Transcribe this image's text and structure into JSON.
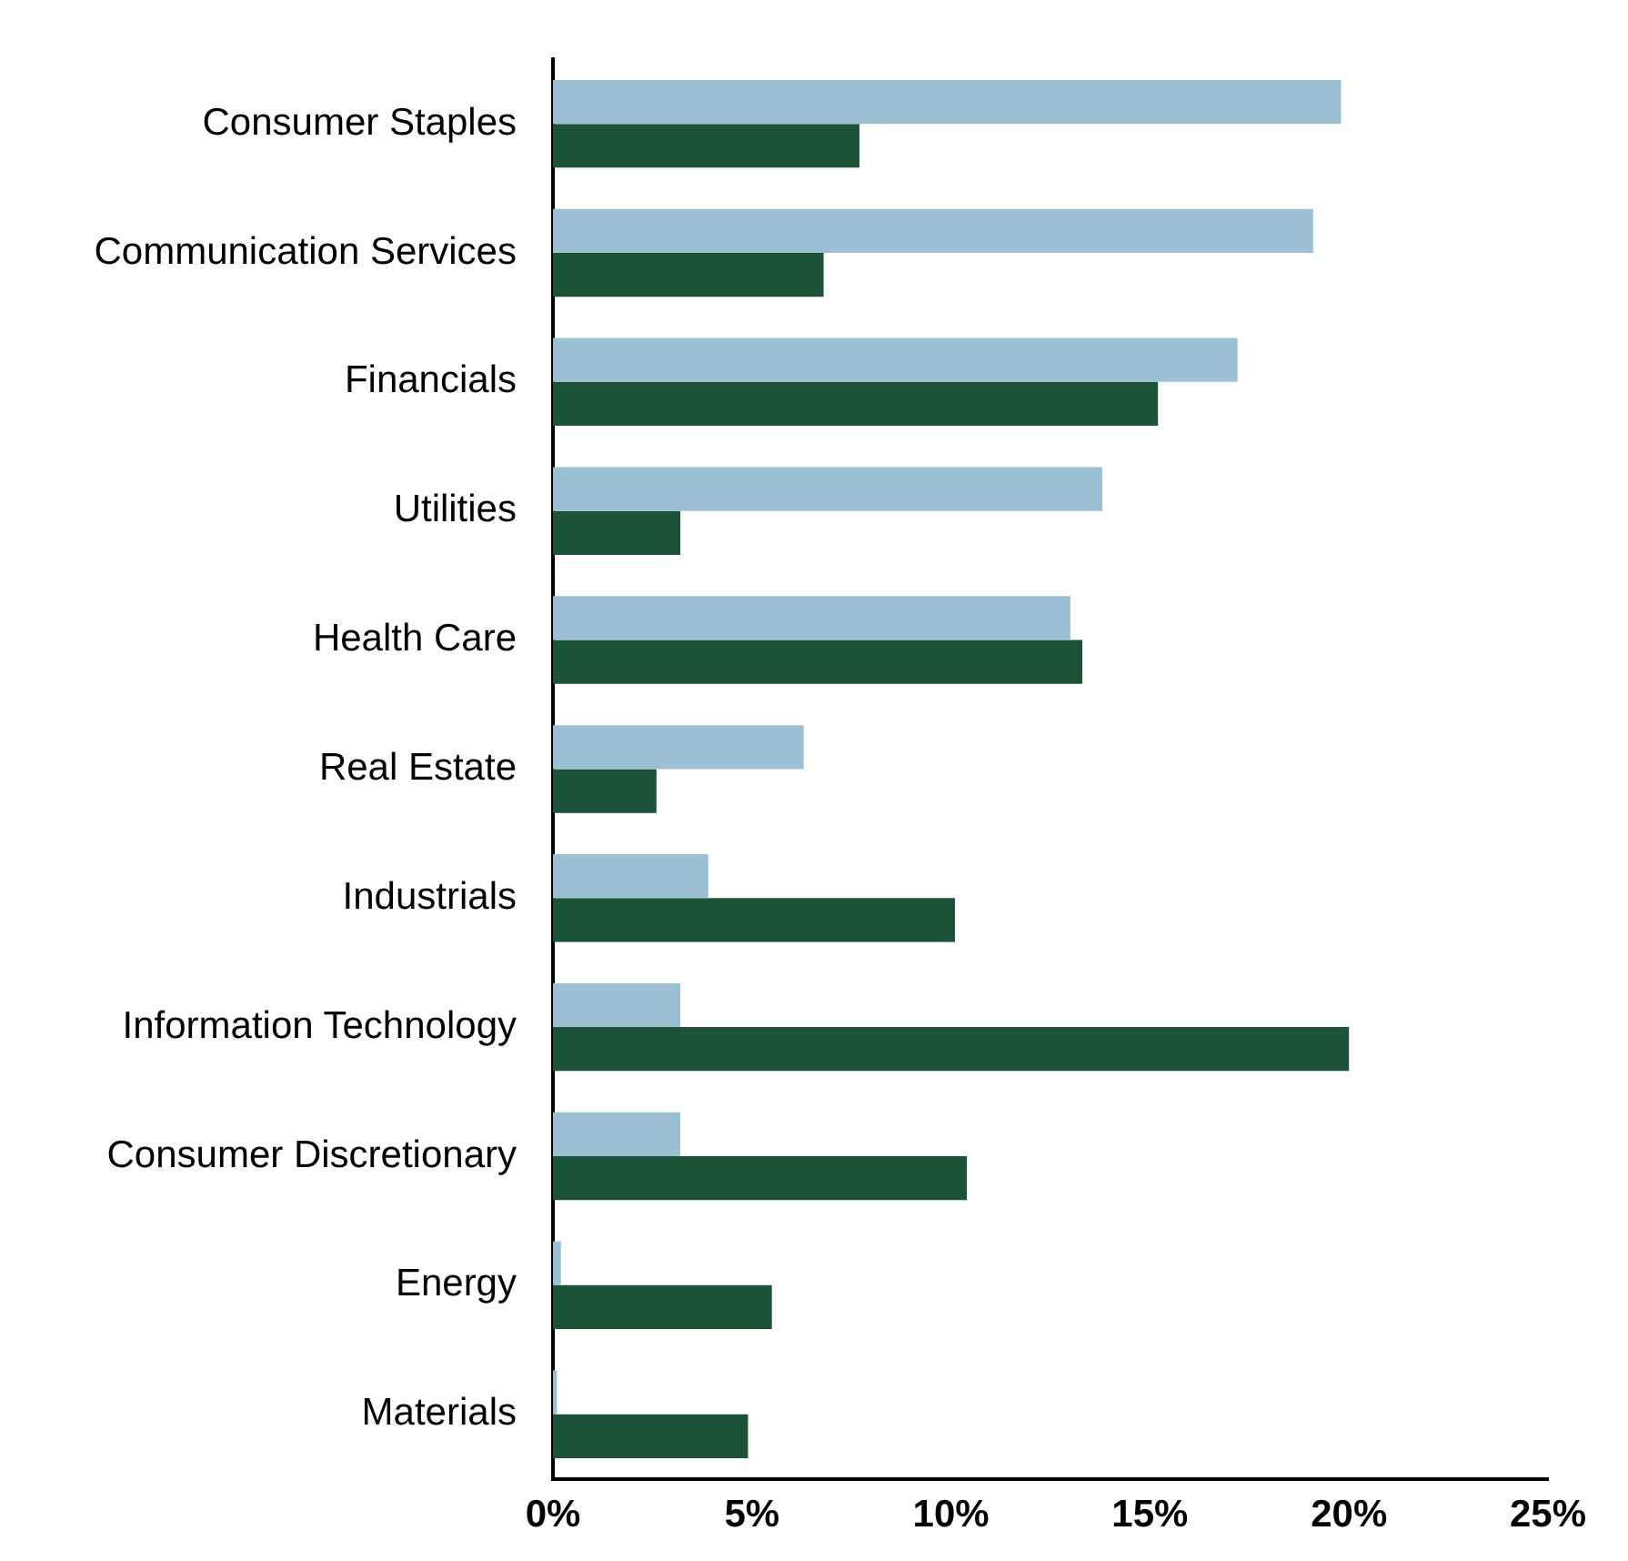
{
  "chart_data": {
    "type": "bar",
    "orientation": "horizontal",
    "categories": [
      "Consumer Staples",
      "Communication Services",
      "Financials",
      "Utilities",
      "Health Care",
      "Real Estate",
      "Industrials",
      "Information Technology",
      "Consumer Discretionary",
      "Energy",
      "Materials"
    ],
    "series": [
      {
        "color": "#9bbfd3",
        "values": [
          19.8,
          19.1,
          17.2,
          13.8,
          13.0,
          6.3,
          3.9,
          3.2,
          3.2,
          0.2,
          0.1
        ]
      },
      {
        "color": "#1c5237",
        "values": [
          7.7,
          6.8,
          15.2,
          3.2,
          13.3,
          2.6,
          10.1,
          20.0,
          10.4,
          5.5,
          4.9
        ]
      }
    ],
    "xlim": [
      0,
      25
    ],
    "xticks": [
      {
        "value": 0,
        "label": "0%"
      },
      {
        "value": 5,
        "label": "5%"
      },
      {
        "value": 10,
        "label": "10%"
      },
      {
        "value": 15,
        "label": "15%"
      },
      {
        "value": 20,
        "label": "20%"
      },
      {
        "value": 25,
        "label": "25%"
      }
    ],
    "grid": false,
    "legend": false
  }
}
